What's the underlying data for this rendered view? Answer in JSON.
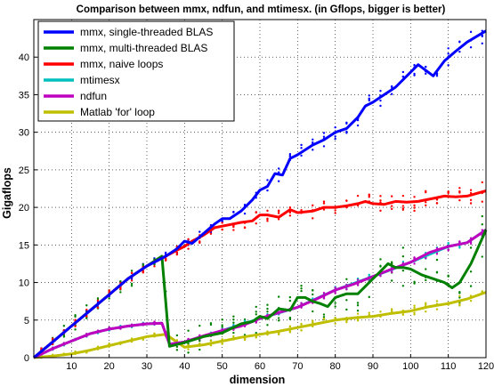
{
  "chart_data": {
    "type": "line",
    "title": "Comparison between mmx, ndfun, and mtimesx. (in Gflops, bigger is better)",
    "xlabel": "dimension",
    "ylabel": "Gigaflops",
    "xlim": [
      0,
      120
    ],
    "ylim": [
      0,
      45
    ],
    "xticks": [
      10,
      20,
      30,
      40,
      50,
      60,
      70,
      80,
      90,
      100,
      110,
      120
    ],
    "yticks": [
      0,
      5,
      10,
      15,
      20,
      25,
      30,
      35,
      40
    ],
    "grid": true,
    "legend_position": "top-left",
    "series": [
      {
        "name": "mmx, single-threaded BLAS",
        "color": "#0000ff",
        "x": [
          0,
          5,
          10,
          15,
          20,
          25,
          30,
          35,
          38,
          40,
          42,
          45,
          48,
          50,
          52,
          55,
          58,
          60,
          62,
          64,
          66,
          68,
          70,
          74,
          77,
          80,
          83,
          86,
          88,
          90,
          93,
          96,
          99,
          102,
          106,
          109,
          112,
          115,
          120
        ],
        "y": [
          0,
          2.1,
          4.2,
          6.3,
          8.4,
          10.5,
          12.2,
          13.5,
          14.5,
          15.5,
          15.2,
          16.5,
          17.8,
          18.5,
          18.5,
          19.5,
          21,
          22.3,
          22.8,
          24.5,
          24.3,
          26.5,
          27,
          28.3,
          29,
          30,
          30.5,
          32,
          33.5,
          34,
          35,
          36,
          37.5,
          39,
          37.5,
          39.5,
          40.8,
          42,
          43.5
        ]
      },
      {
        "name": "mmx, multi-threaded BLAS",
        "color": "#008000",
        "x": [
          0,
          5,
          10,
          15,
          20,
          25,
          30,
          34,
          36,
          40,
          45,
          50,
          55,
          58,
          60,
          62,
          65,
          68,
          70,
          72,
          74,
          76,
          78,
          80,
          83,
          86,
          88,
          90,
          92,
          94,
          96,
          98,
          100,
          103,
          106,
          109,
          111,
          113,
          116,
          120
        ],
        "y": [
          0,
          2.1,
          4.2,
          6.3,
          8.4,
          10.5,
          12.2,
          13.5,
          1.5,
          2,
          2.8,
          3.3,
          4.5,
          4.8,
          5.5,
          5.2,
          6.5,
          6.3,
          8,
          8,
          7.5,
          7.2,
          6.8,
          8,
          8.5,
          8.5,
          9.5,
          10.5,
          11.5,
          12.5,
          12,
          12,
          11.8,
          11,
          10.5,
          10,
          9.3,
          10,
          12.5,
          17
        ]
      },
      {
        "name": "mmx, naive loops",
        "color": "#ff0000",
        "x": [
          0,
          5,
          10,
          15,
          20,
          25,
          30,
          35,
          38,
          40,
          42,
          45,
          48,
          50,
          55,
          58,
          60,
          62,
          65,
          68,
          70,
          74,
          77,
          80,
          83,
          86,
          88,
          90,
          93,
          96,
          99,
          102,
          106,
          109,
          112,
          115,
          120
        ],
        "y": [
          0,
          2.1,
          4.2,
          6.3,
          8.4,
          10.5,
          12.2,
          13.5,
          14.3,
          14.8,
          15.5,
          16.3,
          17.3,
          17.5,
          18,
          18.2,
          19,
          19,
          18.7,
          19.7,
          19.3,
          19.5,
          20,
          20,
          20.2,
          20.5,
          20.8,
          20.5,
          20.4,
          20.8,
          20.7,
          20.8,
          21.2,
          21.5,
          21.4,
          21.5,
          22.2
        ]
      },
      {
        "name": "mtimesx",
        "color": "#00bfbf",
        "x": [
          0,
          5,
          10,
          15,
          20,
          25,
          30,
          34,
          36,
          40,
          50,
          60,
          70,
          80,
          90,
          100,
          110,
          115,
          120
        ],
        "y": [
          0,
          1.2,
          2.2,
          3.2,
          3.8,
          4.2,
          4.5,
          4.6,
          1.8,
          2.1,
          3.6,
          5.2,
          6.7,
          9,
          10.8,
          12.7,
          14.8,
          15.3,
          17
        ]
      },
      {
        "name": "ndfun",
        "color": "#bf00bf",
        "x": [
          0,
          5,
          10,
          15,
          20,
          25,
          30,
          34,
          36,
          40,
          45,
          50,
          55,
          60,
          65,
          70,
          75,
          80,
          85,
          90,
          95,
          100,
          105,
          110,
          115,
          120
        ],
        "y": [
          0,
          1.2,
          2.2,
          3.2,
          3.8,
          4.2,
          4.5,
          4.6,
          1.8,
          2.1,
          2.9,
          3.6,
          4.2,
          5.2,
          6,
          6.7,
          7.8,
          9,
          9.8,
          10.8,
          11.8,
          12.7,
          14,
          14.8,
          15.3,
          17
        ]
      },
      {
        "name": "Matlab 'for' loop",
        "color": "#bfbf00",
        "x": [
          0,
          5,
          10,
          15,
          20,
          25,
          30,
          35,
          40,
          45,
          50,
          55,
          60,
          65,
          70,
          75,
          80,
          85,
          90,
          95,
          100,
          105,
          110,
          115,
          120
        ],
        "y": [
          0,
          0.2,
          0.5,
          1,
          1.6,
          2.2,
          2.8,
          3.1,
          1.4,
          1.7,
          2.2,
          2.7,
          3.1,
          3.5,
          4,
          4.5,
          5,
          5.3,
          5.5,
          5.9,
          6.2,
          6.8,
          7.2,
          7.8,
          8.7
        ]
      }
    ]
  }
}
